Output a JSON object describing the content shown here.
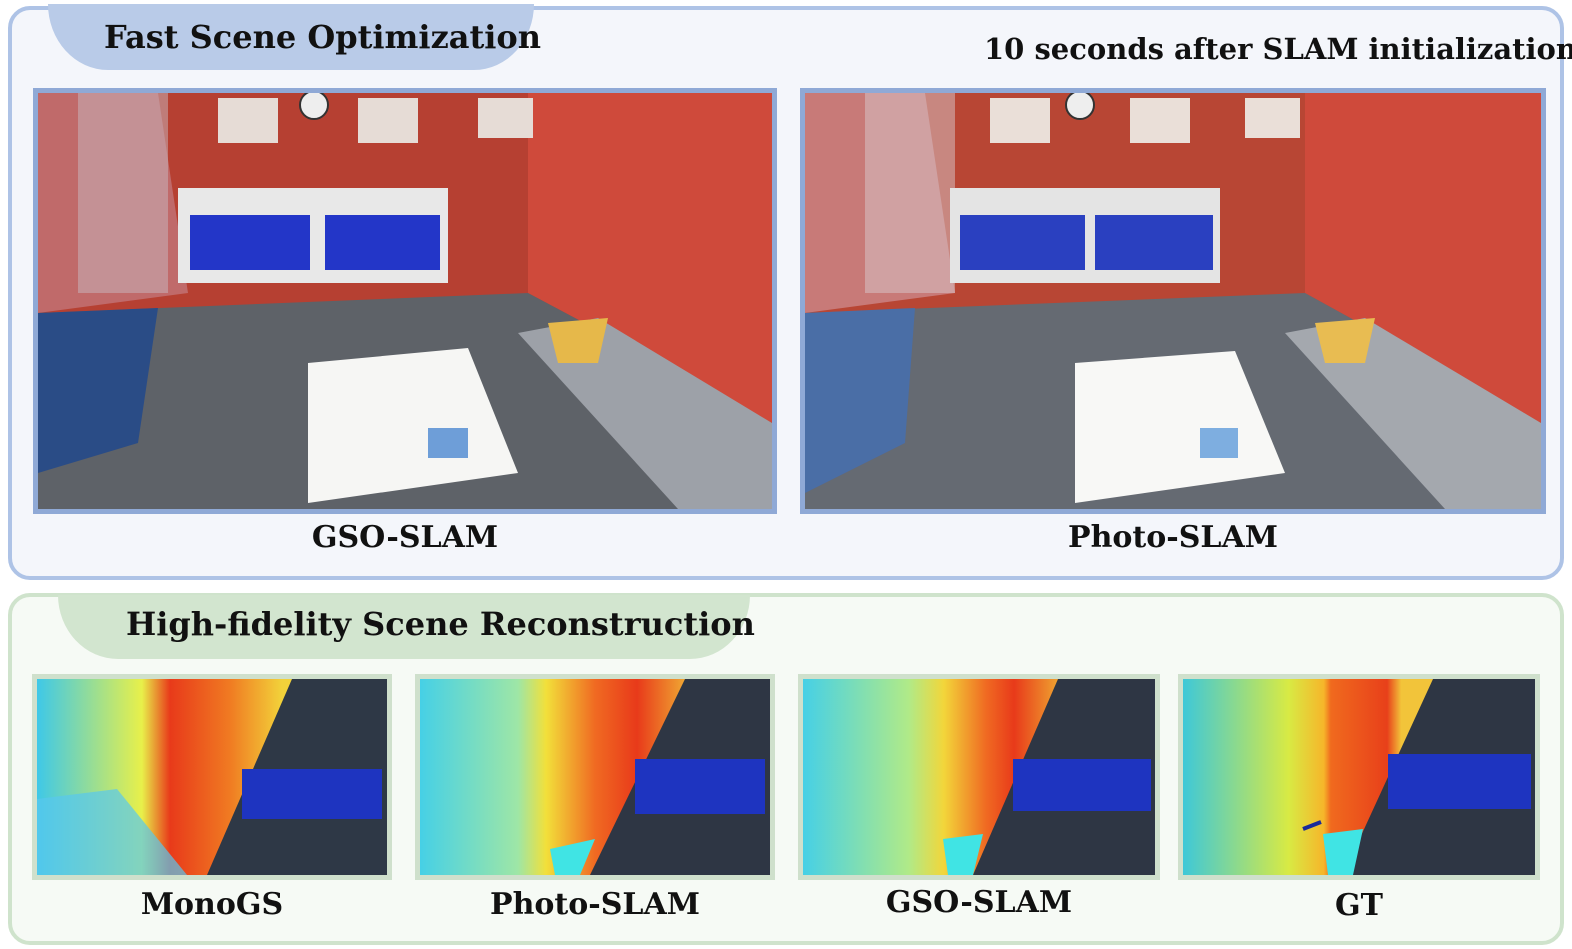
{
  "top_panel": {
    "title": "Fast Scene Optimization",
    "subtitle": "10 seconds after SLAM initialization",
    "images": [
      {
        "caption": "GSO-SLAM"
      },
      {
        "caption": "Photo-SLAM"
      }
    ]
  },
  "bottom_panel": {
    "title": "High-fidelity Scene Reconstruction",
    "images": [
      {
        "caption": "MonoGS"
      },
      {
        "caption": "Photo-SLAM"
      },
      {
        "caption": "GSO-SLAM"
      },
      {
        "caption": "GT"
      }
    ]
  },
  "colors": {
    "top_border": "#aec3e6",
    "top_tab": "#b9cbe8",
    "bottom_border": "#cfe3cc",
    "bottom_tab": "#d2e5cf"
  }
}
